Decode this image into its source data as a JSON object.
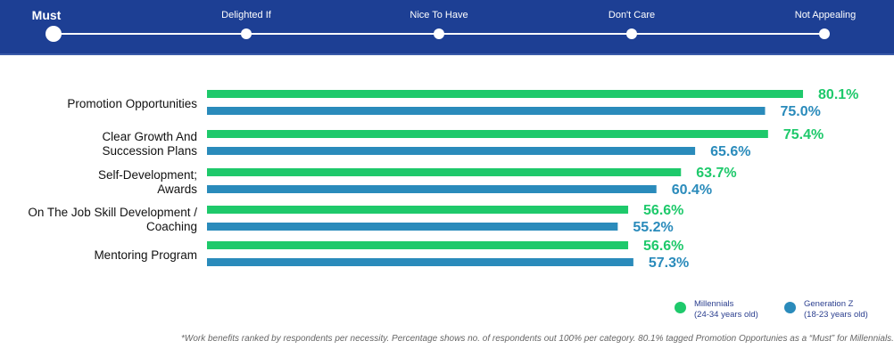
{
  "scale": {
    "steps": [
      "Must",
      "Delighted If",
      "Nice To Have",
      "Don't Care",
      "Not Appealing"
    ],
    "selected": 0
  },
  "chart_data": {
    "type": "bar",
    "orientation": "horizontal",
    "categories": [
      [
        "Promotion Opportunities"
      ],
      [
        "Clear Growth And",
        "Succession Plans"
      ],
      [
        "Self-Development;",
        "Awards"
      ],
      [
        "On The Job Skill Development /",
        "Coaching"
      ],
      [
        "Mentoring Program"
      ]
    ],
    "series": [
      {
        "name": "Millennials",
        "sub": "(24-34 years old)",
        "color": "#1ec96b",
        "values": [
          80.1,
          75.4,
          63.7,
          56.6,
          56.6
        ]
      },
      {
        "name": "Generation Z",
        "sub": "(18-23 years old)",
        "color": "#2a8bbb",
        "values": [
          75.0,
          65.6,
          60.4,
          55.2,
          57.3
        ]
      }
    ],
    "unit": "%",
    "xlim": [
      0,
      100
    ]
  },
  "footnote": "*Work benefits ranked by respondents per necessity. Percentage shows no. of respondents out 100% per category. 80.1% tagged Promotion Opportunies as a “Must” for Millennials."
}
